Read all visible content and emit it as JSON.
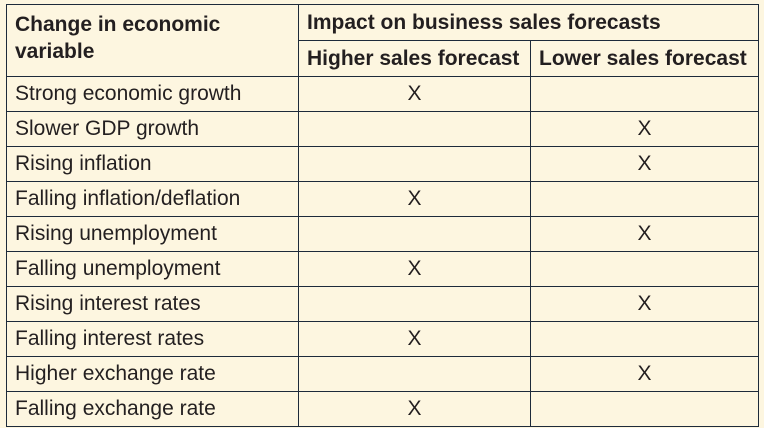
{
  "table": {
    "corner_header": "Change in economic variable",
    "group_header": "Impact on business sales forecasts",
    "sub_headers": [
      "Higher sales forecast",
      "Lower sales forecast"
    ],
    "rows": [
      {
        "label": "Strong economic growth",
        "higher": "X",
        "lower": ""
      },
      {
        "label": "Slower GDP growth",
        "higher": "",
        "lower": "X"
      },
      {
        "label": "Rising inflation",
        "higher": "",
        "lower": "X"
      },
      {
        "label": "Falling inflation/deflation",
        "higher": "X",
        "lower": ""
      },
      {
        "label": "Rising unemployment",
        "higher": "",
        "lower": "X"
      },
      {
        "label": "Falling unemployment",
        "higher": "X",
        "lower": ""
      },
      {
        "label": "Rising interest rates",
        "higher": "",
        "lower": "X"
      },
      {
        "label": "Falling interest rates",
        "higher": "X",
        "lower": ""
      },
      {
        "label": "Higher exchange rate",
        "higher": "",
        "lower": "X"
      },
      {
        "label": "Falling exchange rate",
        "higher": "X",
        "lower": ""
      }
    ]
  },
  "colors": {
    "background": "#fdf6e0",
    "border": "#1d2a3a",
    "text": "#231f20"
  }
}
